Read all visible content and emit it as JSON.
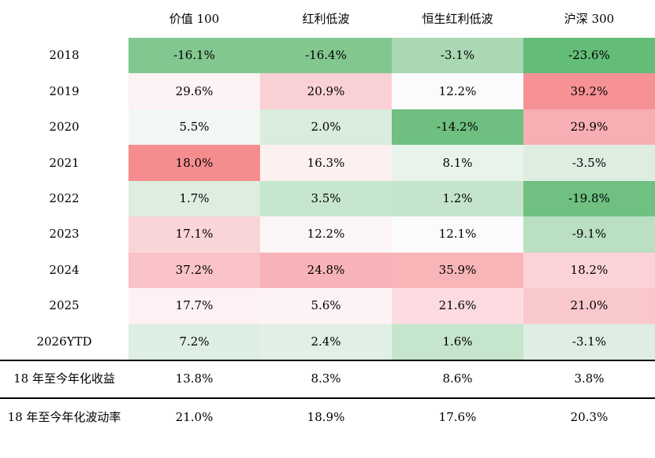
{
  "table": {
    "columns": [
      "价值 100",
      "红利低波",
      "恒生红利低波",
      "沪深 300"
    ],
    "rows": [
      {
        "label": "2018",
        "cells": [
          {
            "value": "-16.1%",
            "bg": "#83c790"
          },
          {
            "value": "-16.4%",
            "bg": "#83c790"
          },
          {
            "value": "-3.1%",
            "bg": "#a9d8b3"
          },
          {
            "value": "-23.6%",
            "bg": "#63bd77"
          }
        ]
      },
      {
        "label": "2019",
        "cells": [
          {
            "value": "29.6%",
            "bg": "#fdf2f4"
          },
          {
            "value": "20.9%",
            "bg": "#f9d0d3"
          },
          {
            "value": "12.2%",
            "bg": "#fbfafc"
          },
          {
            "value": "39.2%",
            "bg": "#f69296"
          }
        ]
      },
      {
        "label": "2020",
        "cells": [
          {
            "value": "5.5%",
            "bg": "#f1f7f3"
          },
          {
            "value": "2.0%",
            "bg": "#d9ecdd"
          },
          {
            "value": "-14.2%",
            "bg": "#6ebf80"
          },
          {
            "value": "29.9%",
            "bg": "#f8afb3"
          }
        ]
      },
      {
        "label": "2021",
        "cells": [
          {
            "value": "18.0%",
            "bg": "#f58d8f"
          },
          {
            "value": "16.3%",
            "bg": "#fdf0f1"
          },
          {
            "value": "8.1%",
            "bg": "#e8f4eb"
          },
          {
            "value": "-3.5%",
            "bg": "#ddeee1"
          }
        ]
      },
      {
        "label": "2022",
        "cells": [
          {
            "value": "1.7%",
            "bg": "#ddeee1"
          },
          {
            "value": "3.5%",
            "bg": "#c7e6ce"
          },
          {
            "value": "1.2%",
            "bg": "#c4e5cb"
          },
          {
            "value": "-19.8%",
            "bg": "#6fc081"
          }
        ]
      },
      {
        "label": "2023",
        "cells": [
          {
            "value": "17.1%",
            "bg": "#fad5d8"
          },
          {
            "value": "12.2%",
            "bg": "#fcf5f7"
          },
          {
            "value": "12.1%",
            "bg": "#fbfafc"
          },
          {
            "value": "-9.1%",
            "bg": "#badfc1"
          }
        ]
      },
      {
        "label": "2024",
        "cells": [
          {
            "value": "37.2%",
            "bg": "#f9c3c7"
          },
          {
            "value": "24.8%",
            "bg": "#f7b3b7"
          },
          {
            "value": "35.9%",
            "bg": "#f8b5b8"
          },
          {
            "value": "18.2%",
            "bg": "#fbd3d6"
          }
        ]
      },
      {
        "label": "2025",
        "cells": [
          {
            "value": "17.7%",
            "bg": "#fdf1f3"
          },
          {
            "value": "5.6%",
            "bg": "#fdf3f5"
          },
          {
            "value": "21.6%",
            "bg": "#fcdce0"
          },
          {
            "value": "21.0%",
            "bg": "#f9c8cc"
          }
        ]
      },
      {
        "label": "2026YTD",
        "cells": [
          {
            "value": "7.2%",
            "bg": "#ddeee2"
          },
          {
            "value": "2.4%",
            "bg": "#e1f0e5"
          },
          {
            "value": "1.6%",
            "bg": "#c5e5cc"
          },
          {
            "value": "-3.1%",
            "bg": "#dfeee3"
          }
        ]
      }
    ],
    "summary_rows": [
      {
        "label": "18 年至今年化收益",
        "values": [
          "13.8%",
          "8.3%",
          "8.6%",
          "3.8%"
        ]
      },
      {
        "label": "18 年至今年化波动率",
        "values": [
          "21.0%",
          "18.9%",
          "17.6%",
          "20.3%"
        ]
      }
    ]
  },
  "colors": {
    "negative_strong": "#63bd77",
    "positive_strong": "#f69296",
    "separator": "#000000",
    "background": "#ffffff",
    "text": "#000000"
  },
  "chart_data": {
    "type": "heatmap",
    "title": "",
    "columns": [
      "价值 100",
      "红利低波",
      "恒生红利低波",
      "沪深 300"
    ],
    "rows": [
      "2018",
      "2019",
      "2020",
      "2021",
      "2022",
      "2023",
      "2024",
      "2025",
      "2026YTD"
    ],
    "values_pct": [
      [
        -16.1,
        -16.4,
        -3.1,
        -23.6
      ],
      [
        29.6,
        20.9,
        12.2,
        39.2
      ],
      [
        5.5,
        2.0,
        -14.2,
        29.9
      ],
      [
        18.0,
        16.3,
        8.1,
        -3.5
      ],
      [
        1.7,
        3.5,
        1.2,
        -19.8
      ],
      [
        17.1,
        12.2,
        12.1,
        -9.1
      ],
      [
        37.2,
        24.8,
        35.9,
        18.2
      ],
      [
        17.7,
        5.6,
        21.6,
        21.0
      ],
      [
        7.2,
        2.4,
        1.6,
        -3.1
      ]
    ],
    "summary": [
      {
        "label": "18 年至今年化收益",
        "values_pct": [
          13.8,
          8.3,
          8.6,
          3.8
        ]
      },
      {
        "label": "18 年至今年化波动率",
        "values_pct": [
          21.0,
          18.9,
          17.6,
          20.3
        ]
      }
    ],
    "color_encoding": "green shades = losses/low, red-pink shades = gains/high; cell shading per table",
    "legend_position": "none",
    "grid": false
  }
}
